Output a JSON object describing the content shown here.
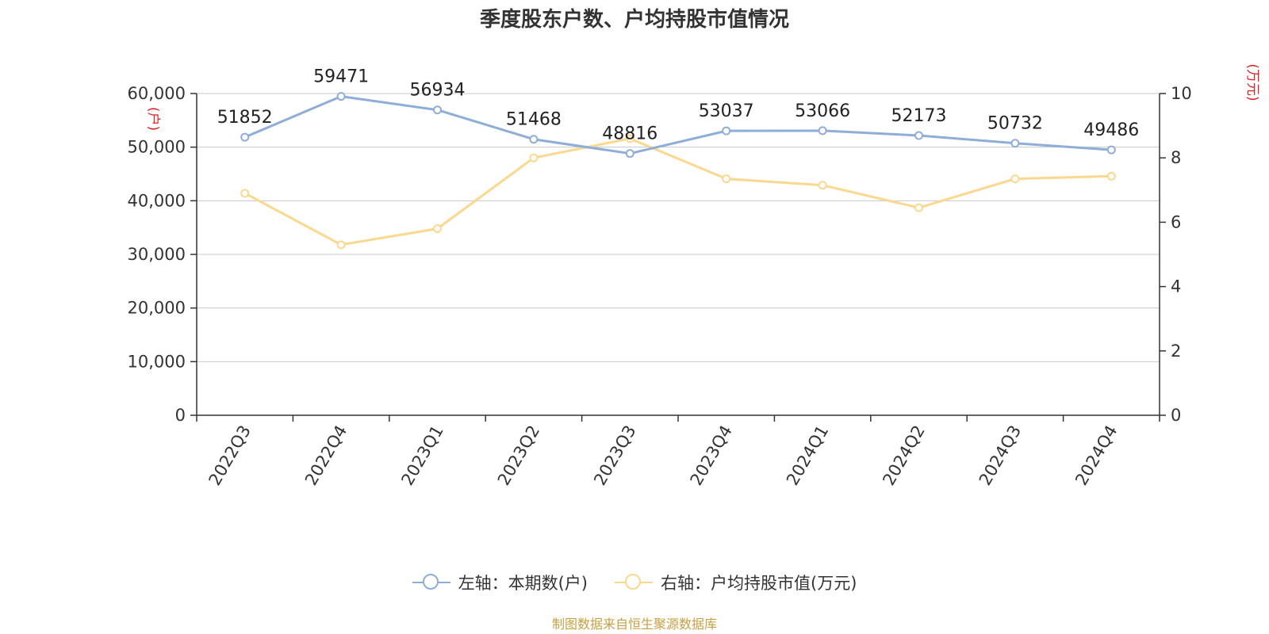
{
  "title": "季度股东户数、户均持股市值情况",
  "source": "制图数据来自恒生聚源数据库",
  "colors": {
    "left_series": "#8fadd9",
    "right_series": "#fcd88f",
    "unit_label": "#e02020",
    "grid": "#c8c8c8",
    "axis": "#333333",
    "text": "#333333",
    "source": "#c8a043"
  },
  "legend": {
    "left": "左轴：本期数(户)",
    "right": "右轴：户均持股市值(万元)"
  },
  "chart_data": {
    "type": "line",
    "title": "季度股东户数、户均持股市值情况",
    "categories": [
      "2022Q3",
      "2022Q4",
      "2023Q1",
      "2023Q2",
      "2023Q3",
      "2023Q4",
      "2024Q1",
      "2024Q2",
      "2024Q3",
      "2024Q4"
    ],
    "y_left": {
      "unit": "(户)",
      "range": [
        0,
        60000
      ],
      "ticks": [
        0,
        10000,
        20000,
        30000,
        40000,
        50000,
        60000
      ],
      "tick_labels": [
        "0",
        "10,000",
        "20,000",
        "30,000",
        "40,000",
        "50,000",
        "60,000"
      ]
    },
    "y_right": {
      "unit": "(万元)",
      "range": [
        0,
        10
      ],
      "ticks": [
        0,
        2,
        4,
        6,
        8,
        10
      ],
      "tick_labels": [
        "0",
        "2",
        "4",
        "6",
        "8",
        "10"
      ]
    },
    "grid": true,
    "legend_position": "bottom-center",
    "series": [
      {
        "name": "左轴：本期数(户)",
        "axis": "left",
        "values": [
          51852,
          59471,
          56934,
          51468,
          48816,
          53037,
          53066,
          52173,
          50732,
          49486
        ],
        "data_labels": [
          "51852",
          "59471",
          "56934",
          "51468",
          "48816",
          "53037",
          "53066",
          "52173",
          "50732",
          "49486"
        ]
      },
      {
        "name": "右轴：户均持股市值(万元)",
        "axis": "right",
        "values": [
          6.9,
          5.3,
          5.8,
          8.0,
          8.6,
          7.35,
          7.15,
          6.45,
          7.35,
          7.43
        ]
      }
    ]
  }
}
